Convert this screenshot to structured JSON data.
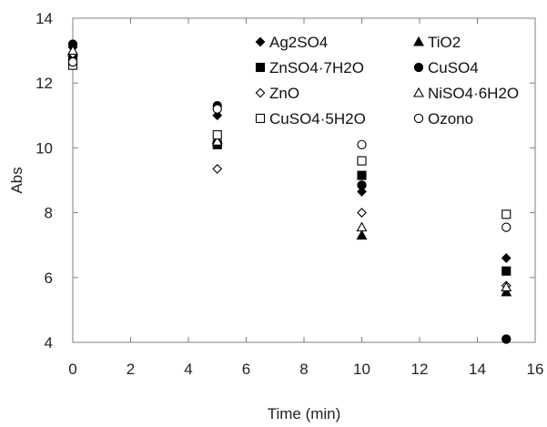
{
  "chart_data": {
    "type": "scatter",
    "xlabel": "Time (min)",
    "ylabel": "Abs",
    "xlim": [
      0,
      16
    ],
    "ylim": [
      4,
      14
    ],
    "xticks": [
      0,
      2,
      4,
      6,
      8,
      10,
      12,
      14,
      16
    ],
    "yticks": [
      4,
      6,
      8,
      10,
      12,
      14
    ],
    "grid": false,
    "legend_position": "top-right",
    "series": [
      {
        "name": "Ag2SO4",
        "marker": "diamond-filled",
        "color": "#000000",
        "x": [
          0,
          5,
          10,
          15
        ],
        "y": [
          13.1,
          11.0,
          8.65,
          6.6
        ]
      },
      {
        "name": "TiO2",
        "marker": "triangle-filled",
        "color": "#000000",
        "x": [
          0,
          5,
          10,
          15
        ],
        "y": [
          12.95,
          10.25,
          7.3,
          5.55
        ]
      },
      {
        "name": "ZnSO4·7H2O",
        "marker": "square-filled",
        "color": "#000000",
        "x": [
          0,
          5,
          10,
          15
        ],
        "y": [
          12.8,
          10.1,
          9.15,
          6.2
        ]
      },
      {
        "name": "CuSO4",
        "marker": "circle-filled",
        "color": "#000000",
        "x": [
          0,
          5,
          10,
          15
        ],
        "y": [
          13.2,
          11.3,
          8.85,
          4.1
        ]
      },
      {
        "name": "ZnO",
        "marker": "diamond-open",
        "color": "#000000",
        "x": [
          0,
          5,
          10,
          15
        ],
        "y": [
          12.9,
          9.35,
          8.0,
          5.75
        ]
      },
      {
        "name": "NiSO4·6H2O",
        "marker": "triangle-open",
        "color": "#000000",
        "x": [
          0,
          5,
          10,
          15
        ],
        "y": [
          13.0,
          10.2,
          7.55,
          5.7
        ]
      },
      {
        "name": "CuSO4·5H2O",
        "marker": "square-open",
        "color": "#000000",
        "x": [
          0,
          5,
          10,
          15
        ],
        "y": [
          12.55,
          10.4,
          9.6,
          7.95
        ]
      },
      {
        "name": "Ozono",
        "marker": "circle-open",
        "color": "#000000",
        "x": [
          0,
          5,
          10,
          15
        ],
        "y": [
          12.65,
          11.2,
          10.1,
          7.55
        ]
      }
    ]
  }
}
